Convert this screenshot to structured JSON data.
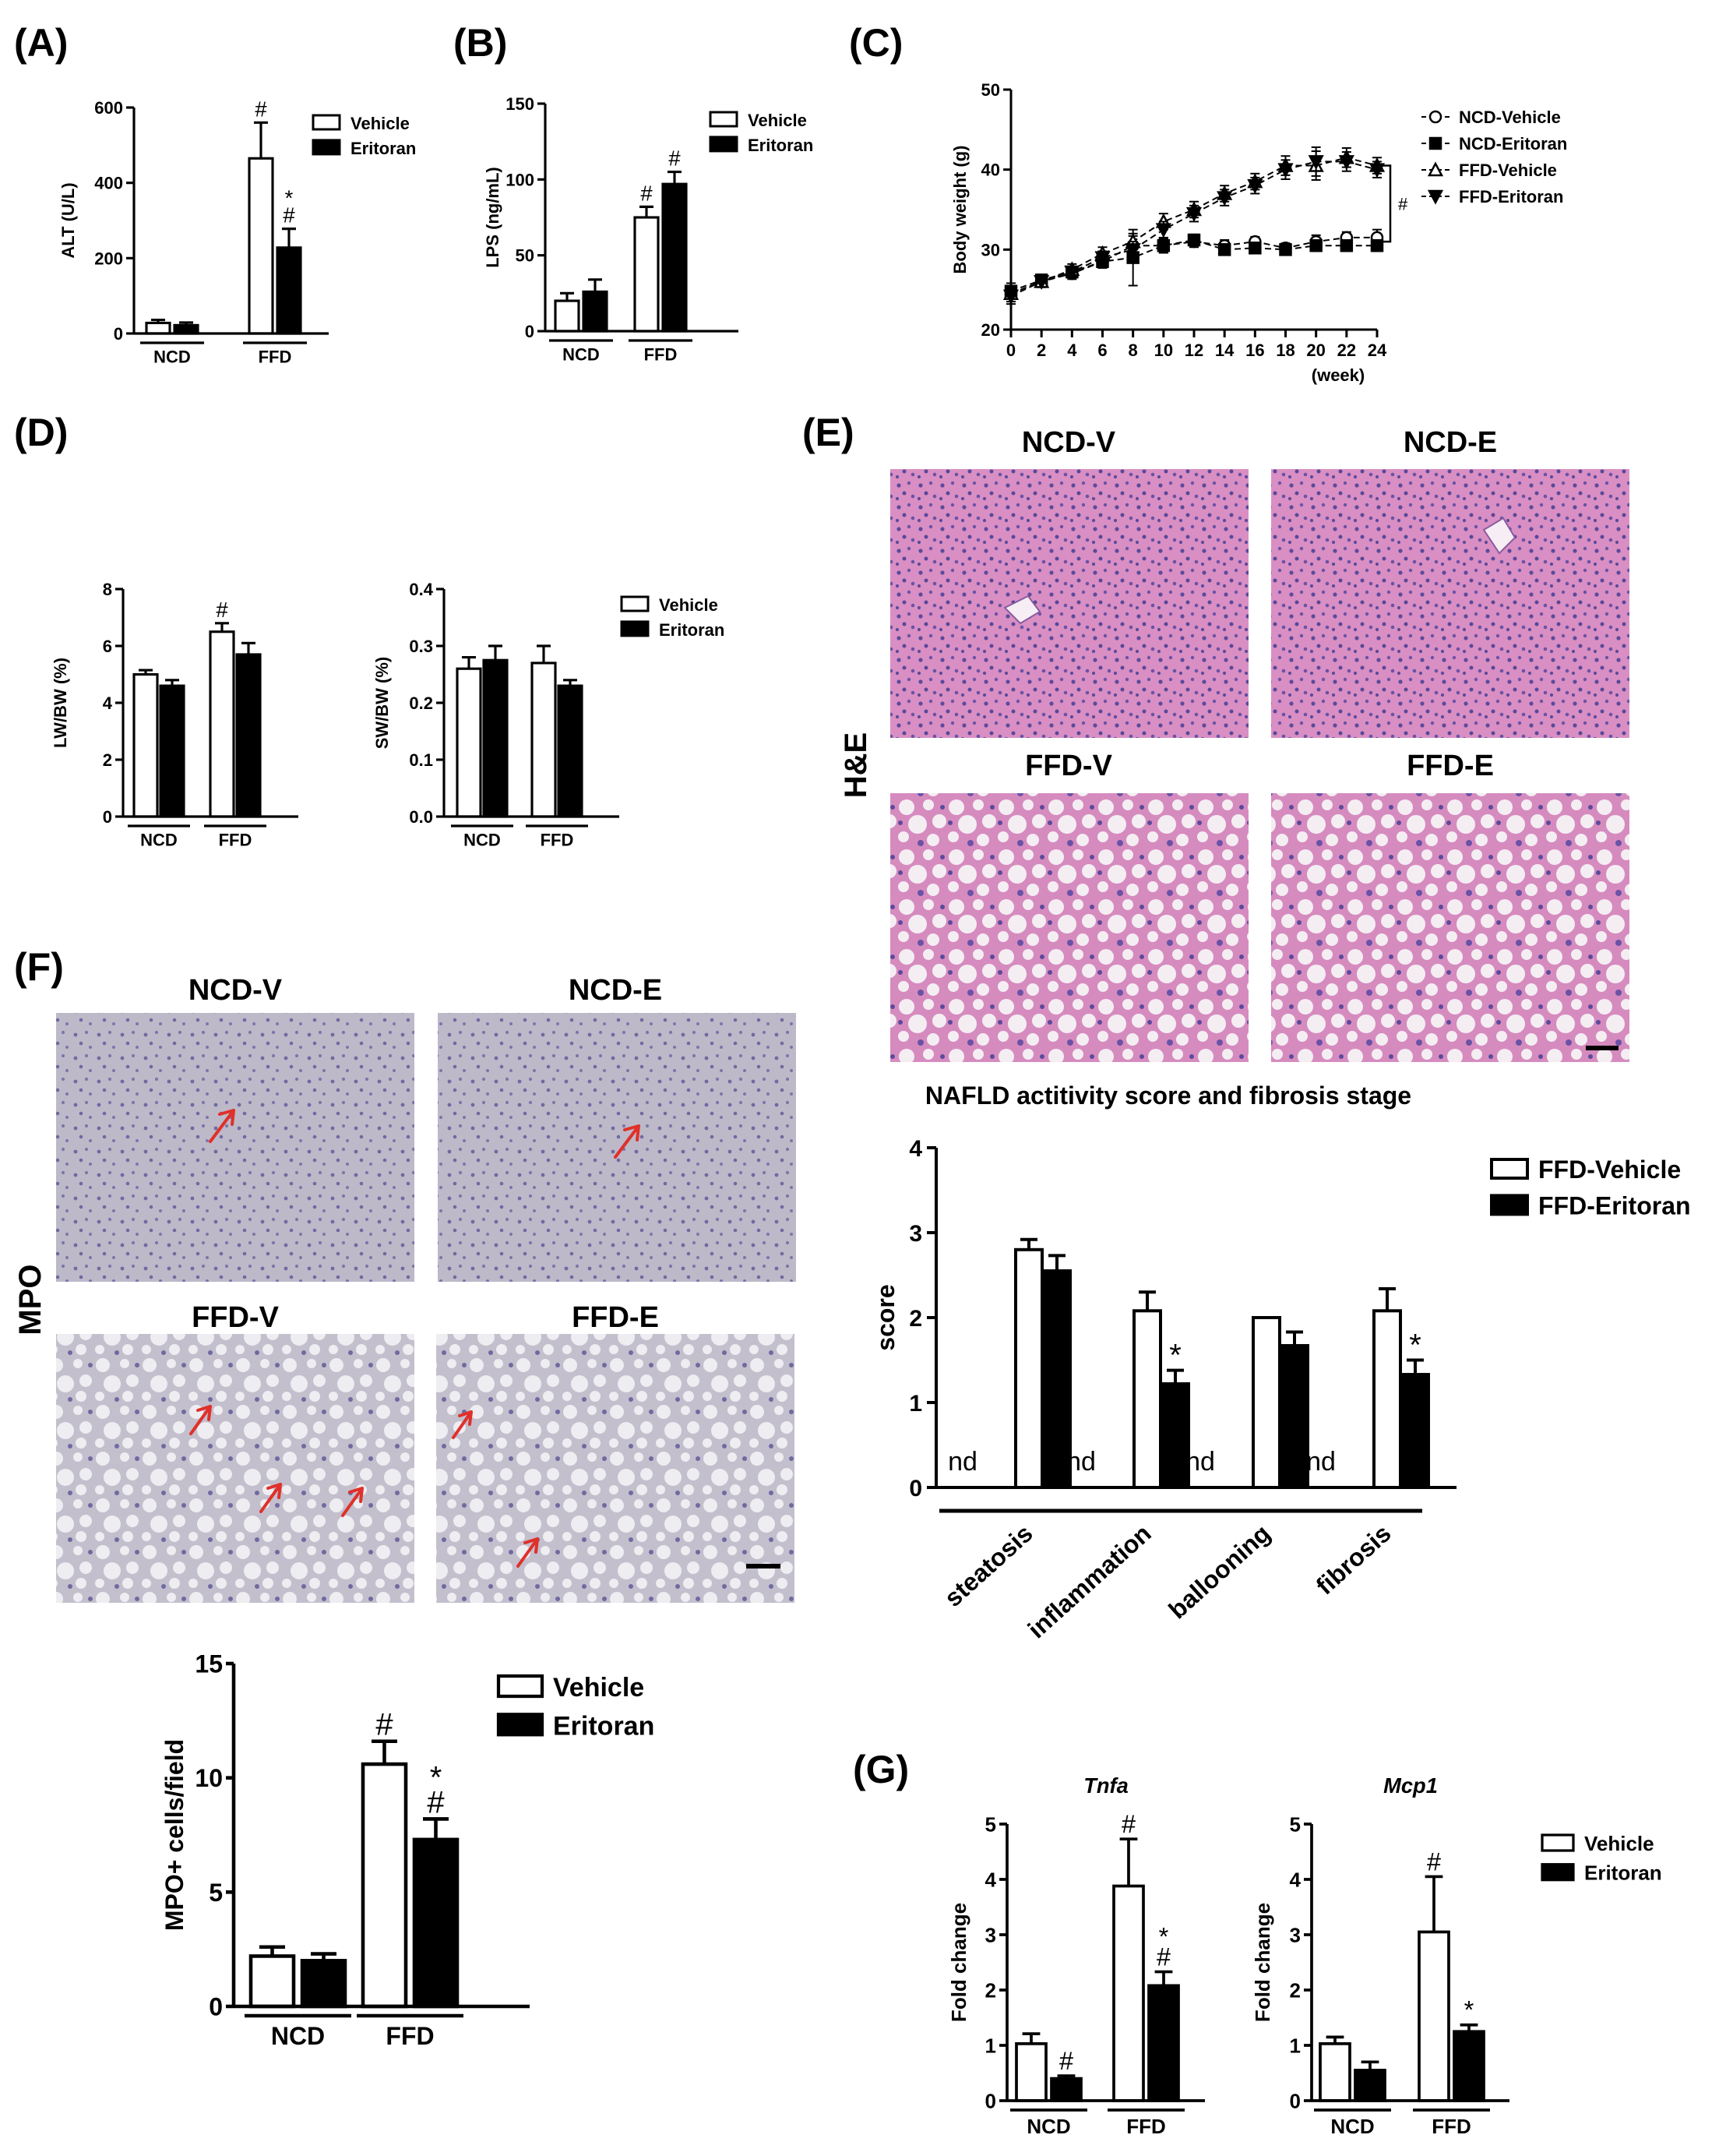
{
  "panels": {
    "a": "(A)",
    "b": "(B)",
    "c": "(C)",
    "d": "(D)",
    "e": "(E)",
    "f": "(F)",
    "g": "(G)"
  },
  "legend": {
    "vehicle": "Vehicle",
    "eritoran": "Eritoran",
    "ffd_vehicle": "FFD-Vehicle",
    "ffd_eritoran": "FFD-Eritoran"
  },
  "groups": {
    "ncd": "NCD",
    "ffd": "FFD"
  },
  "marks": {
    "hash": "#",
    "star": "*",
    "nd": "nd"
  },
  "image_panels": {
    "he_label": "H&E",
    "mpo_label": "MPO",
    "ncd_v": "NCD-V",
    "ncd_e": "NCD-E",
    "ffd_v": "FFD-V",
    "ffd_e": "FFD-E"
  },
  "colors": {
    "vehicle_fill": "#ffffff",
    "eritoran_fill": "#000000",
    "he_normal": "#d88cc0",
    "he_fatty": "#e6bdd9",
    "mpo_normal": "#b7b4c6",
    "mpo_fatty": "#d2d0d8",
    "arrow": "#e0302a"
  },
  "chart_data": [
    {
      "id": "A",
      "type": "bar",
      "ylabel": "ALT  (U/L)",
      "ylim": [
        0,
        600
      ],
      "yticks": [
        "0",
        "200",
        "400",
        "600"
      ],
      "categories": [
        "NCD",
        "FFD"
      ],
      "series": [
        {
          "name": "Vehicle",
          "values": [
            28,
            465
          ],
          "errors": [
            8,
            95
          ]
        },
        {
          "name": "Eritoran",
          "values": [
            22,
            228
          ],
          "errors": [
            7,
            50
          ]
        }
      ],
      "annotations": [
        [
          "",
          ""
        ],
        [
          "#",
          "*\n#"
        ]
      ]
    },
    {
      "id": "B",
      "type": "bar",
      "ylabel": "LPS (ng/mL)",
      "ylim": [
        0,
        150
      ],
      "yticks": [
        "0",
        "50",
        "100",
        "150"
      ],
      "categories": [
        "NCD",
        "FFD"
      ],
      "series": [
        {
          "name": "Vehicle",
          "values": [
            20,
            75
          ],
          "errors": [
            5,
            7
          ]
        },
        {
          "name": "Eritoran",
          "values": [
            26,
            97
          ],
          "errors": [
            8,
            8
          ]
        }
      ],
      "annotations": [
        [
          "",
          ""
        ],
        [
          "#",
          "#"
        ]
      ]
    },
    {
      "id": "C",
      "type": "line",
      "ylabel": "Body weight (g)",
      "xlabel": "(week)",
      "ylim": [
        20,
        50
      ],
      "xlim": [
        0,
        24
      ],
      "yticks": [
        "20",
        "30",
        "40",
        "50"
      ],
      "xticks": [
        "0",
        "2",
        "4",
        "6",
        "8",
        "10",
        "12",
        "14",
        "16",
        "18",
        "20",
        "22",
        "24"
      ],
      "x": [
        0,
        2,
        4,
        6,
        8,
        10,
        12,
        14,
        16,
        18,
        20,
        22,
        24
      ],
      "series": [
        {
          "name": "NCD-Vehicle",
          "marker": "circle",
          "values": [
            24.5,
            26,
            27,
            28.5,
            30.5,
            30.5,
            31,
            30.5,
            31,
            30.2,
            31,
            31.5,
            31.5
          ],
          "errors": [
            1,
            0.7,
            0.7,
            0.7,
            1.2,
            0.9,
            0.7,
            0.7,
            0.6,
            0.6,
            0.8,
            0.7,
            1
          ]
        },
        {
          "name": "NCD-Eritoran",
          "marker": "square",
          "values": [
            24.8,
            26.2,
            27.2,
            28.5,
            29,
            30.5,
            31.2,
            30,
            30.2,
            30,
            30.5,
            30.5,
            30.5
          ],
          "errors": [
            1,
            0.7,
            0.7,
            0.8,
            3.5,
            0.9,
            0.7,
            0.7,
            0.6,
            0.6,
            0.7,
            0.7,
            0.7
          ]
        },
        {
          "name": "FFD-Vehicle",
          "marker": "triangle-up",
          "values": [
            24.5,
            26,
            27.5,
            29.5,
            31,
            33.5,
            35,
            37,
            38.5,
            40.5,
            40.5,
            41.5,
            40.5
          ],
          "errors": [
            1,
            0.7,
            0.7,
            0.8,
            1,
            1,
            1,
            1,
            1,
            1.2,
            1.8,
            1.2,
            1
          ]
        },
        {
          "name": "FFD-Eritoran",
          "marker": "triangle-down",
          "values": [
            24.2,
            26,
            27.2,
            29,
            30,
            32.5,
            34.5,
            36.5,
            38,
            40,
            41,
            41,
            40
          ],
          "errors": [
            1,
            0.7,
            0.7,
            0.8,
            1,
            1,
            1,
            1,
            1,
            1.2,
            1.8,
            1.2,
            1
          ]
        }
      ],
      "bracket_label": "#"
    },
    {
      "id": "D1",
      "type": "bar",
      "ylabel": "LW/BW (%)",
      "ylim": [
        0,
        8
      ],
      "yticks": [
        "0",
        "2",
        "4",
        "6",
        "8"
      ],
      "categories": [
        "NCD",
        "FFD"
      ],
      "series": [
        {
          "name": "Vehicle",
          "values": [
            5.0,
            6.5
          ],
          "errors": [
            0.15,
            0.3
          ]
        },
        {
          "name": "Eritoran",
          "values": [
            4.6,
            5.7
          ],
          "errors": [
            0.2,
            0.4
          ]
        }
      ],
      "annotations": [
        [
          "",
          ""
        ],
        [
          "#",
          ""
        ]
      ]
    },
    {
      "id": "D2",
      "type": "bar",
      "ylabel": "SW/BW (%)",
      "ylim": [
        0,
        0.4
      ],
      "yticks": [
        "0.0",
        "0.1",
        "0.2",
        "0.3",
        "0.4"
      ],
      "categories": [
        "NCD",
        "FFD"
      ],
      "series": [
        {
          "name": "Vehicle",
          "values": [
            0.26,
            0.27
          ],
          "errors": [
            0.02,
            0.03
          ]
        },
        {
          "name": "Eritoran",
          "values": [
            0.275,
            0.23
          ],
          "errors": [
            0.025,
            0.01
          ]
        }
      ],
      "annotations": [
        [
          "",
          ""
        ],
        [
          "",
          ""
        ]
      ]
    },
    {
      "id": "E",
      "type": "bar",
      "title": "NAFLD actitivity score and fibrosis stage",
      "ylabel": "score",
      "ylim": [
        0,
        4
      ],
      "yticks": [
        "0",
        "1",
        "2",
        "3",
        "4"
      ],
      "categories": [
        "steatosis",
        "inflammation",
        "ballooning",
        "fibrosis"
      ],
      "nd_groups": [
        "nd",
        "nd",
        "nd",
        "nd"
      ],
      "series": [
        {
          "name": "FFD-Vehicle",
          "values": [
            2.8,
            2.08,
            2.0,
            2.08
          ],
          "errors": [
            0.12,
            0.22,
            0,
            0.26
          ]
        },
        {
          "name": "FFD-Eritoran",
          "values": [
            2.55,
            1.22,
            1.67,
            1.33
          ],
          "errors": [
            0.18,
            0.16,
            0.16,
            0.17
          ]
        }
      ],
      "annotations": [
        [
          "",
          ""
        ],
        [
          "",
          "*"
        ],
        [
          "",
          ""
        ],
        [
          "",
          "*"
        ]
      ]
    },
    {
      "id": "F",
      "type": "bar",
      "ylabel": "MPO+ cells/field",
      "ylim": [
        0,
        15
      ],
      "yticks": [
        "0",
        "5",
        "10",
        "15"
      ],
      "categories": [
        "NCD",
        "FFD"
      ],
      "series": [
        {
          "name": "Vehicle",
          "values": [
            2.2,
            10.6
          ],
          "errors": [
            0.4,
            1.0
          ]
        },
        {
          "name": "Eritoran",
          "values": [
            2.0,
            7.3
          ],
          "errors": [
            0.3,
            0.9
          ]
        }
      ],
      "annotations": [
        [
          "",
          ""
        ],
        [
          "#",
          "*\n#"
        ]
      ]
    },
    {
      "id": "G1",
      "type": "bar",
      "title": "Tnfa",
      "ylabel": "Fold change",
      "ylim": [
        0,
        5
      ],
      "yticks": [
        "0",
        "1",
        "2",
        "3",
        "4",
        "5"
      ],
      "categories": [
        "NCD",
        "FFD"
      ],
      "series": [
        {
          "name": "Vehicle",
          "values": [
            1.03,
            3.88
          ],
          "errors": [
            0.18,
            0.85
          ]
        },
        {
          "name": "Eritoran",
          "values": [
            0.4,
            2.08
          ],
          "errors": [
            0.05,
            0.25
          ]
        }
      ],
      "annotations": [
        [
          "",
          "#"
        ],
        [
          "#",
          "*\n#"
        ]
      ]
    },
    {
      "id": "G2",
      "type": "bar",
      "title": "Mcp1",
      "ylabel": "Fold change",
      "ylim": [
        0,
        5
      ],
      "yticks": [
        "0",
        "1",
        "2",
        "3",
        "4",
        "5"
      ],
      "categories": [
        "NCD",
        "FFD"
      ],
      "series": [
        {
          "name": "Vehicle",
          "values": [
            1.03,
            3.05
          ],
          "errors": [
            0.12,
            1.0
          ]
        },
        {
          "name": "Eritoran",
          "values": [
            0.55,
            1.25
          ],
          "errors": [
            0.15,
            0.12
          ]
        }
      ],
      "annotations": [
        [
          "",
          ""
        ],
        [
          "#",
          "*"
        ]
      ]
    }
  ]
}
